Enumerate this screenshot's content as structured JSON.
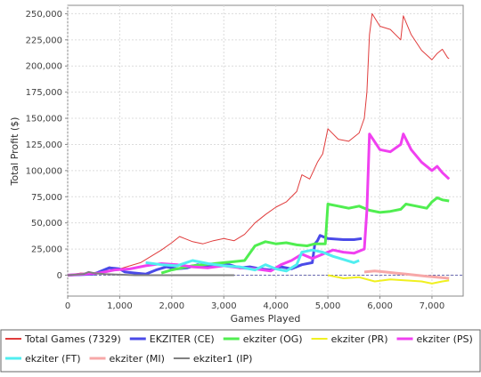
{
  "chart_data": {
    "type": "line",
    "xlabel": "Games Played",
    "ylabel": "Total Profit ($)",
    "xlim": [
      0,
      7600
    ],
    "ylim": [
      -20000,
      258000
    ],
    "x_ticks": [
      0,
      1000,
      2000,
      3000,
      4000,
      5000,
      6000,
      7000
    ],
    "x_tick_labels": [
      "0",
      "1,000",
      "2,000",
      "3,000",
      "4,000",
      "5,000",
      "6,000",
      "7,000"
    ],
    "y_ticks": [
      0,
      25000,
      50000,
      75000,
      100000,
      125000,
      150000,
      175000,
      200000,
      225000,
      250000
    ],
    "y_tick_labels": [
      "0",
      "25,000",
      "50,000",
      "75,000",
      "100,000",
      "125,000",
      "150,000",
      "175,000",
      "200,000",
      "225,000",
      "250,000"
    ],
    "grid": true,
    "legend_position": "bottom",
    "series": [
      {
        "name": "Total Games (7329)",
        "color": "#e03c3c",
        "width": 1,
        "points": [
          [
            0,
            0
          ],
          [
            250,
            2000
          ],
          [
            500,
            1500
          ],
          [
            700,
            3000
          ],
          [
            800,
            8000
          ],
          [
            1000,
            6000
          ],
          [
            1200,
            9000
          ],
          [
            1400,
            12000
          ],
          [
            1600,
            18000
          ],
          [
            1800,
            24000
          ],
          [
            2000,
            31000
          ],
          [
            2150,
            37000
          ],
          [
            2250,
            35000
          ],
          [
            2400,
            32000
          ],
          [
            2600,
            30000
          ],
          [
            2800,
            33000
          ],
          [
            3000,
            35000
          ],
          [
            3200,
            33000
          ],
          [
            3400,
            39000
          ],
          [
            3600,
            50000
          ],
          [
            3800,
            58000
          ],
          [
            4000,
            65000
          ],
          [
            4200,
            70000
          ],
          [
            4400,
            80000
          ],
          [
            4500,
            96000
          ],
          [
            4650,
            92000
          ],
          [
            4800,
            108000
          ],
          [
            4900,
            116000
          ],
          [
            5000,
            140000
          ],
          [
            5200,
            130000
          ],
          [
            5400,
            128000
          ],
          [
            5600,
            136000
          ],
          [
            5700,
            150000
          ],
          [
            5750,
            175000
          ],
          [
            5800,
            230000
          ],
          [
            5850,
            250000
          ],
          [
            6000,
            238000
          ],
          [
            6200,
            235000
          ],
          [
            6400,
            225000
          ],
          [
            6450,
            248000
          ],
          [
            6600,
            230000
          ],
          [
            6800,
            215000
          ],
          [
            7000,
            206000
          ],
          [
            7100,
            212000
          ],
          [
            7200,
            216000
          ],
          [
            7300,
            208000
          ],
          [
            7329,
            207000
          ]
        ]
      },
      {
        "name": "EKZITER (CE)",
        "color": "#4a4ae8",
        "width": 3,
        "points": [
          [
            0,
            0
          ],
          [
            500,
            1000
          ],
          [
            800,
            7000
          ],
          [
            1000,
            6000
          ],
          [
            1100,
            3000
          ],
          [
            1300,
            2000
          ],
          [
            1500,
            1000
          ],
          [
            1700,
            5000
          ],
          [
            1900,
            8000
          ],
          [
            2100,
            6000
          ],
          [
            2300,
            7000
          ],
          [
            2500,
            10000
          ],
          [
            2700,
            8000
          ],
          [
            2900,
            9000
          ],
          [
            3100,
            10000
          ],
          [
            3300,
            7000
          ],
          [
            3500,
            8000
          ],
          [
            3700,
            6000
          ],
          [
            3900,
            5000
          ],
          [
            4100,
            8000
          ],
          [
            4300,
            6000
          ],
          [
            4500,
            10000
          ],
          [
            4700,
            12000
          ],
          [
            4750,
            30000
          ],
          [
            4800,
            33000
          ],
          [
            4850,
            38000
          ],
          [
            5000,
            35000
          ],
          [
            5300,
            34000
          ],
          [
            5500,
            34000
          ],
          [
            5650,
            35000
          ]
        ]
      },
      {
        "name": "ekziter (OG)",
        "color": "#50ee50",
        "width": 3,
        "points": [
          [
            1800,
            2000
          ],
          [
            2000,
            5000
          ],
          [
            2200,
            7000
          ],
          [
            2400,
            9000
          ],
          [
            2600,
            10000
          ],
          [
            3000,
            12000
          ],
          [
            3200,
            13000
          ],
          [
            3400,
            14000
          ],
          [
            3600,
            28000
          ],
          [
            3800,
            32000
          ],
          [
            4000,
            30000
          ],
          [
            4200,
            31000
          ],
          [
            4400,
            29000
          ],
          [
            4600,
            28000
          ],
          [
            4750,
            30000
          ],
          [
            4950,
            30000
          ],
          [
            5000,
            68000
          ],
          [
            5200,
            66000
          ],
          [
            5400,
            64000
          ],
          [
            5600,
            66000
          ],
          [
            5800,
            62000
          ],
          [
            6000,
            60000
          ],
          [
            6200,
            61000
          ],
          [
            6400,
            63000
          ],
          [
            6500,
            68000
          ],
          [
            6700,
            66000
          ],
          [
            6900,
            64000
          ],
          [
            7000,
            70000
          ],
          [
            7100,
            74000
          ],
          [
            7200,
            72000
          ],
          [
            7329,
            71000
          ]
        ]
      },
      {
        "name": "ekziter (PR)",
        "color": "#f0f020",
        "width": 2,
        "points": [
          [
            5000,
            0
          ],
          [
            5300,
            -3000
          ],
          [
            5600,
            -2000
          ],
          [
            5900,
            -6000
          ],
          [
            6200,
            -4000
          ],
          [
            6500,
            -5000
          ],
          [
            6800,
            -6000
          ],
          [
            7000,
            -8000
          ],
          [
            7200,
            -6000
          ],
          [
            7329,
            -5000
          ]
        ]
      },
      {
        "name": "ekziter (PS)",
        "color": "#f040f0",
        "width": 3,
        "points": [
          [
            0,
            0
          ],
          [
            300,
            1000
          ],
          [
            600,
            2000
          ],
          [
            900,
            5000
          ],
          [
            1200,
            6000
          ],
          [
            1500,
            9000
          ],
          [
            1800,
            11000
          ],
          [
            2100,
            10000
          ],
          [
            2400,
            8000
          ],
          [
            2700,
            7000
          ],
          [
            3000,
            9000
          ],
          [
            3300,
            7000
          ],
          [
            3600,
            6000
          ],
          [
            3900,
            4000
          ],
          [
            4100,
            10000
          ],
          [
            4300,
            14000
          ],
          [
            4500,
            20000
          ],
          [
            4700,
            16000
          ],
          [
            4900,
            20000
          ],
          [
            5100,
            24000
          ],
          [
            5300,
            22000
          ],
          [
            5500,
            21000
          ],
          [
            5700,
            25000
          ],
          [
            5750,
            62000
          ],
          [
            5800,
            135000
          ],
          [
            6000,
            120000
          ],
          [
            6200,
            118000
          ],
          [
            6400,
            125000
          ],
          [
            6450,
            135000
          ],
          [
            6600,
            120000
          ],
          [
            6800,
            108000
          ],
          [
            7000,
            100000
          ],
          [
            7100,
            104000
          ],
          [
            7200,
            98000
          ],
          [
            7329,
            92000
          ]
        ]
      },
      {
        "name": "ekziter (FT)",
        "color": "#50eef0",
        "width": 3,
        "points": [
          [
            1500,
            12000
          ],
          [
            1800,
            10000
          ],
          [
            2100,
            9000
          ],
          [
            2400,
            14000
          ],
          [
            2700,
            11000
          ],
          [
            3000,
            9000
          ],
          [
            3300,
            8000
          ],
          [
            3600,
            5000
          ],
          [
            3800,
            10000
          ],
          [
            4000,
            6000
          ],
          [
            4200,
            4000
          ],
          [
            4400,
            10000
          ],
          [
            4500,
            22000
          ],
          [
            4700,
            24000
          ],
          [
            4900,
            22000
          ],
          [
            5100,
            18000
          ],
          [
            5300,
            15000
          ],
          [
            5500,
            12000
          ],
          [
            5600,
            14000
          ]
        ]
      },
      {
        "name": "ekziter (MI)",
        "color": "#f7a8a8",
        "width": 3,
        "points": [
          [
            5700,
            3000
          ],
          [
            5900,
            4000
          ],
          [
            6100,
            3000
          ],
          [
            6300,
            2000
          ],
          [
            6500,
            1000
          ],
          [
            6700,
            0
          ],
          [
            6900,
            -1000
          ],
          [
            7100,
            -2000
          ],
          [
            7329,
            -3000
          ]
        ]
      },
      {
        "name": "ekziter1 (IP)",
        "color": "#808080",
        "width": 2,
        "points": [
          [
            0,
            0
          ],
          [
            300,
            1000
          ],
          [
            400,
            3000
          ],
          [
            500,
            2000
          ],
          [
            700,
            1000
          ],
          [
            1000,
            500
          ],
          [
            1300,
            0
          ],
          [
            1600,
            0
          ],
          [
            2000,
            0
          ],
          [
            2500,
            0
          ],
          [
            3000,
            0
          ],
          [
            3200,
            0
          ]
        ]
      }
    ]
  }
}
